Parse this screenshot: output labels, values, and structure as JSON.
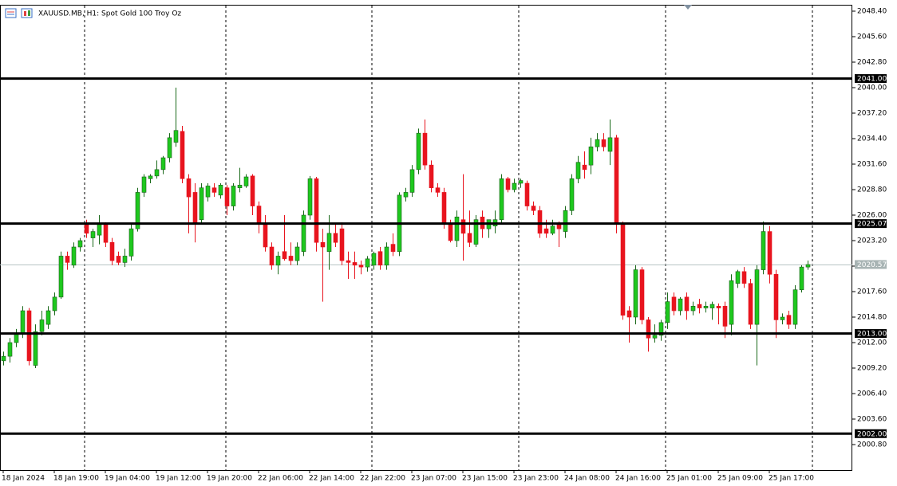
{
  "chart_data": {
    "type": "candlestick",
    "title": "XAUUSD.MB, H1:  Spot Gold 100 Troy Oz",
    "categories": [
      "18 Jan 2024",
      null,
      null,
      null,
      null,
      null,
      null,
      null,
      "18 Jan 19:00",
      null,
      null,
      null,
      null,
      null,
      null,
      null,
      "19 Jan 04:00",
      null,
      null,
      null,
      null,
      null,
      null,
      null,
      "19 Jan 12:00",
      null,
      null,
      null,
      null,
      null,
      null,
      null,
      "19 Jan 20:00",
      null,
      null,
      null,
      null,
      null,
      null,
      null,
      "22 Jan 06:00",
      null,
      null,
      null,
      null,
      null,
      null,
      null,
      "22 Jan 14:00",
      null,
      null,
      null,
      null,
      null,
      null,
      null,
      "22 Jan 22:00",
      null,
      null,
      null,
      null,
      null,
      null,
      null,
      "23 Jan 07:00",
      null,
      null,
      null,
      null,
      null,
      null,
      null,
      "23 Jan 15:00",
      null,
      null,
      null,
      null,
      null,
      null,
      null,
      "23 Jan 23:00",
      null,
      null,
      null,
      null,
      null,
      null,
      null,
      "24 Jan 08:00",
      null,
      null,
      null,
      null,
      null,
      null,
      null,
      "24 Jan 16:00",
      null,
      null,
      null,
      null,
      null,
      null,
      null,
      "25 Jan 01:00",
      null,
      null,
      null,
      null,
      null,
      null,
      null,
      "25 Jan 09:00",
      null,
      null,
      null,
      null,
      null,
      null,
      null,
      "25 Jan 17:00",
      null,
      null,
      null,
      null,
      null,
      null
    ],
    "open": [
      2010.0,
      2010.5,
      2012,
      2013,
      2015.5,
      2009.5,
      2013.2,
      2014,
      2015.5,
      2017,
      2021.5,
      2020.5,
      2022.5,
      2025,
      2023.5,
      2023.8,
      2025,
      2023,
      2021.5,
      2020.8,
      2021.5,
      2024.5,
      2028.5,
      2030,
      2030.3,
      2031,
      2032.3,
      2034,
      2035.2,
      2030,
      2028.5,
      2025.5,
      2028,
      2029,
      2028.2,
      2029,
      2027,
      2029,
      2029.2,
      2030.3,
      2027,
      2025,
      2022.5,
      2020.5,
      2022,
      2021.5,
      2021,
      2022,
      2026,
      2030,
      2023,
      2022,
      2024,
      2024.5,
      2021,
      2020.8,
      2020.5,
      2020.3,
      2020.5,
      2022,
      2020.5,
      2022.8,
      2022,
      2028,
      2028.5,
      2031,
      2035,
      2031.5,
      2029,
      2028.5,
      2025,
      2023.2,
      2025.5,
      2024,
      2022.8,
      2025.8,
      2024.5,
      2024.8,
      2025.5,
      2030,
      2028.8,
      2029.5,
      2029.5,
      2027,
      2026.5,
      2024.5,
      2024,
      2025,
      2024.2,
      2026.5,
      2030,
      2031.5,
      2031.5,
      2033.5,
      2034.3,
      2033,
      2034.5,
      2025,
      2015.5,
      2014.8,
      2020,
      2014.5,
      2012.5,
      2012.8,
      2014.2,
      2017,
      2015.5,
      2017,
      2015.5,
      2016.2,
      2015.8,
      2015.8,
      2016,
      2016,
      2014,
      2018.5,
      2019.8,
      2018.5,
      2014,
      2020,
      2024.2,
      2019.5,
      2014.5,
      2015,
      2014,
      2017.8,
      2020.3
    ],
    "high": [
      2011,
      2012.5,
      2013.5,
      2016,
      2015.8,
      2014,
      2015.5,
      2016,
      2017.5,
      2022,
      2022,
      2023,
      2023.5,
      2025.5,
      2024.5,
      2026,
      2025.2,
      2023.5,
      2022,
      2022.3,
      2025,
      2029,
      2030.5,
      2030.5,
      2032,
      2032.5,
      2035,
      2040,
      2035.8,
      2030.5,
      2029.5,
      2029.5,
      2029.5,
      2029.5,
      2029.5,
      2029.3,
      2029.5,
      2031.2,
      2030.5,
      2030.5,
      2027.5,
      2026,
      2023,
      2022,
      2026,
      2023,
      2023,
      2026.5,
      2030.3,
      2030.2,
      2024.5,
      2026,
      2025,
      2025.2,
      2022,
      2022,
      2021,
      2021.5,
      2022,
      2022.5,
      2023,
      2024,
      2028.5,
      2029,
      2031.5,
      2035.5,
      2036.5,
      2032,
      2029.5,
      2029,
      2025.5,
      2026.5,
      2030.5,
      2026.5,
      2026,
      2026.5,
      2025.5,
      2026.5,
      2030.5,
      2030.2,
      2030,
      2030,
      2029.8,
      2027.5,
      2027,
      2025.5,
      2025.5,
      2025.3,
      2027,
      2030.5,
      2032.5,
      2033,
      2034.5,
      2035,
      2035,
      2036.5,
      2034.8,
      2025.3,
      2016,
      2020.5,
      2020.3,
      2014.8,
      2014,
      2014.5,
      2017.5,
      2017.5,
      2017,
      2017.5,
      2016.5,
      2016.8,
      2016.5,
      2016.5,
      2016.3,
      2016.5,
      2019.5,
      2020,
      2020.3,
      2019,
      2020.5,
      2025.3,
      2024.8,
      2020,
      2015.2,
      2015.5,
      2018.3,
      2020.5,
      2021
    ],
    "low": [
      2009.5,
      2009.8,
      2011.5,
      2012.5,
      2009.5,
      2009.2,
      2012.8,
      2013.5,
      2015,
      2016.8,
      2020,
      2020.2,
      2022,
      2023.5,
      2022.5,
      2022.8,
      2022.5,
      2020.5,
      2020.5,
      2020.3,
      2021,
      2024.2,
      2028,
      2029.5,
      2030,
      2030.5,
      2031.8,
      2033.5,
      2029.5,
      2024,
      2023,
      2025,
      2027.5,
      2028,
      2027.8,
      2026,
      2026.5,
      2028.5,
      2029,
      2026,
      2024,
      2022,
      2020,
      2019.5,
      2021,
      2020.5,
      2020.5,
      2021.5,
      2025.5,
      2022,
      2016.5,
      2020,
      2022.5,
      2020.5,
      2019,
      2019,
      2019.5,
      2019.8,
      2020,
      2020,
      2020,
      2021.5,
      2021.5,
      2027.5,
      2028,
      2030.5,
      2031,
      2028.5,
      2028,
      2024.5,
      2023,
      2022.5,
      2021,
      2022.5,
      2022.5,
      2023.5,
      2023.5,
      2024,
      2025,
      2028.5,
      2028.5,
      2029,
      2026.5,
      2026,
      2023.5,
      2023.5,
      2023.8,
      2022.5,
      2023.5,
      2026,
      2029.5,
      2030,
      2030.5,
      2033,
      2033,
      2031.5,
      2024,
      2014.5,
      2012,
      2014,
      2014,
      2011,
      2012,
      2012.2,
      2013.5,
      2015,
      2015,
      2014.5,
      2015,
      2015.2,
      2015.3,
      2014.5,
      2014,
      2012.5,
      2012.8,
      2018,
      2018,
      2013.5,
      2009.5,
      2019.5,
      2018.5,
      2012.5,
      2014,
      2013.5,
      2013.5,
      2017.5,
      2020
    ],
    "close": [
      2010.5,
      2012,
      2013,
      2015.5,
      2010,
      2013.2,
      2014.5,
      2015.5,
      2017,
      2021.5,
      2020.8,
      2022.5,
      2023.2,
      2024,
      2024.2,
      2025,
      2023,
      2021,
      2020.8,
      2021.5,
      2024.5,
      2028.5,
      2030.2,
      2030.3,
      2031,
      2032.3,
      2034.5,
      2035.3,
      2030,
      2028,
      2025,
      2029,
      2029.2,
      2028.5,
      2029.3,
      2027,
      2029.2,
      2029.3,
      2030.2,
      2027,
      2025,
      2022.5,
      2020.5,
      2021.5,
      2021.2,
      2021,
      2022.5,
      2026,
      2030,
      2023,
      2022.5,
      2024,
      2023,
      2021,
      2020.8,
      2020.5,
      2020.3,
      2021.2,
      2021.8,
      2020.5,
      2022.5,
      2022,
      2028.2,
      2028.5,
      2031,
      2035,
      2031.5,
      2029,
      2028.5,
      2025,
      2023.2,
      2025.8,
      2024,
      2023,
      2025.5,
      2024.5,
      2025.5,
      2025.5,
      2030,
      2028.8,
      2029.5,
      2029.8,
      2027,
      2026.5,
      2024,
      2024,
      2024.8,
      2024.5,
      2026.5,
      2030,
      2031.8,
      2031,
      2033.5,
      2034.3,
      2033.5,
      2034.5,
      2025,
      2015,
      2014.8,
      2020,
      2014.5,
      2012.5,
      2012.8,
      2014.2,
      2016.5,
      2015.5,
      2016.8,
      2015.5,
      2016,
      2015.8,
      2016,
      2016.2,
      2015.8,
      2013.8,
      2018.8,
      2019.8,
      2018.5,
      2014,
      2020,
      2024.2,
      2019.5,
      2014.5,
      2014.8,
      2014,
      2017.8,
      2020.3,
      2020.57
    ],
    "up_color": "#1ec81e",
    "down_color": "#e8141e",
    "ylim": [
      1998.0,
      2049.1
    ],
    "yticks": [
      {
        "value": 2048.4,
        "label": "2048.40"
      },
      {
        "value": 2045.6,
        "label": "2045.60"
      },
      {
        "value": 2042.8,
        "label": "2042.80"
      },
      {
        "value": 2040,
        "label": "2040.00"
      },
      {
        "value": 2037.2,
        "label": "2037.20"
      },
      {
        "value": 2034.4,
        "label": "2034.40"
      },
      {
        "value": 2031.6,
        "label": "2031.60"
      },
      {
        "value": 2028.8,
        "label": "2028.80"
      },
      {
        "value": 2026,
        "label": "2026.00"
      },
      {
        "value": 2023.2,
        "label": "2023.20"
      },
      {
        "value": 2020.4,
        "label": "2020.40"
      },
      {
        "value": 2017.6,
        "label": "2017.60"
      },
      {
        "value": 2014.8,
        "label": "2014.80"
      },
      {
        "value": 2012,
        "label": "2012.00"
      },
      {
        "value": 2009.2,
        "label": "2009.20"
      },
      {
        "value": 2006.4,
        "label": "2006.40"
      },
      {
        "value": 2003.6,
        "label": "2003.60"
      },
      {
        "value": 2000.8,
        "label": "2000.80"
      }
    ],
    "levels": [
      {
        "value": 2041,
        "label": "2041.00"
      },
      {
        "value": 2025.07,
        "label": "2025.07"
      },
      {
        "value": 2013,
        "label": "2013.00"
      },
      {
        "value": 2002,
        "label": "2002.00"
      }
    ],
    "current_price": {
      "value": 2020.57,
      "label": "2020.57"
    }
  }
}
